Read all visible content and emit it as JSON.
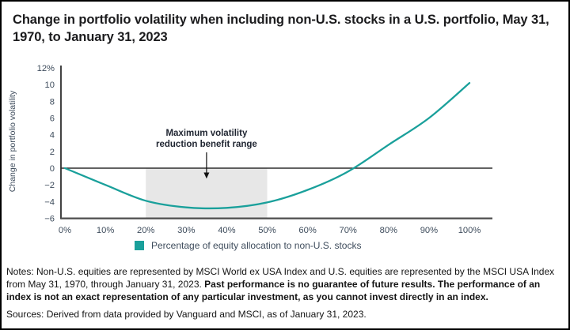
{
  "title": "Change in portfolio volatility when including non-U.S. stocks in a U.S. portfolio, May 31, 1970, to January 31, 2023",
  "chart_data": {
    "type": "line",
    "x": [
      0,
      10,
      20,
      30,
      40,
      50,
      60,
      70,
      80,
      90,
      100
    ],
    "series": [
      {
        "name": "Change in portfolio volatility",
        "values": [
          0,
          -2.0,
          -3.9,
          -4.7,
          -4.75,
          -4.1,
          -2.6,
          -0.4,
          2.8,
          6.0,
          10.2
        ]
      }
    ],
    "title": "Change in portfolio volatility when including non-U.S. stocks in a U.S. portfolio, May 31, 1970, to January 31, 2023",
    "xlabel": "Percentage of equity allocation to non-U.S. stocks",
    "ylabel": "Change in portfolio volatility",
    "ylim": [
      -6,
      12
    ],
    "xlim": [
      0,
      100
    ],
    "grid": false,
    "legend_position": "bottom",
    "xticks": {
      "values": [
        0,
        10,
        20,
        30,
        40,
        50,
        60,
        70,
        80,
        90,
        100
      ],
      "labels": [
        "0%",
        "10%",
        "20%",
        "30%",
        "40%",
        "50%",
        "60%",
        "70%",
        "80%",
        "90%",
        "100%"
      ]
    },
    "yticks": {
      "values": [
        12,
        10,
        8,
        6,
        4,
        2,
        0,
        -2,
        -4,
        -6
      ],
      "labels": [
        "12%",
        "10",
        "8",
        "6",
        "4",
        "2",
        "0",
        "−2",
        "−4",
        "−6"
      ]
    },
    "shaded_region": {
      "x_start": 20,
      "x_end": 50,
      "label_lines": [
        "Maximum volatility",
        "reduction benefit range"
      ]
    },
    "zero_crossing_x": 71,
    "colors": {
      "line": "#1aa09b",
      "band": "#e7e7e7",
      "axis_text": "#3e4c5c"
    },
    "legend": [
      {
        "label": "Percentage of equity allocation to non-U.S. stocks",
        "color": "#1aa09b"
      }
    ]
  },
  "notes": {
    "prefix": "Notes: Non-U.S. equities are represented by MSCI World ex USA Index and U.S. equities are represented by the MSCI USA Index from May 31, 1970, through January 31, 2023. ",
    "bold": "Past performance is no guarantee of future results. The performance of an index is not an exact representation of any particular investment, as you cannot invest directly in an index."
  },
  "sources": "Sources: Derived from data provided by Vanguard and MSCI, as of January 31, 2023."
}
